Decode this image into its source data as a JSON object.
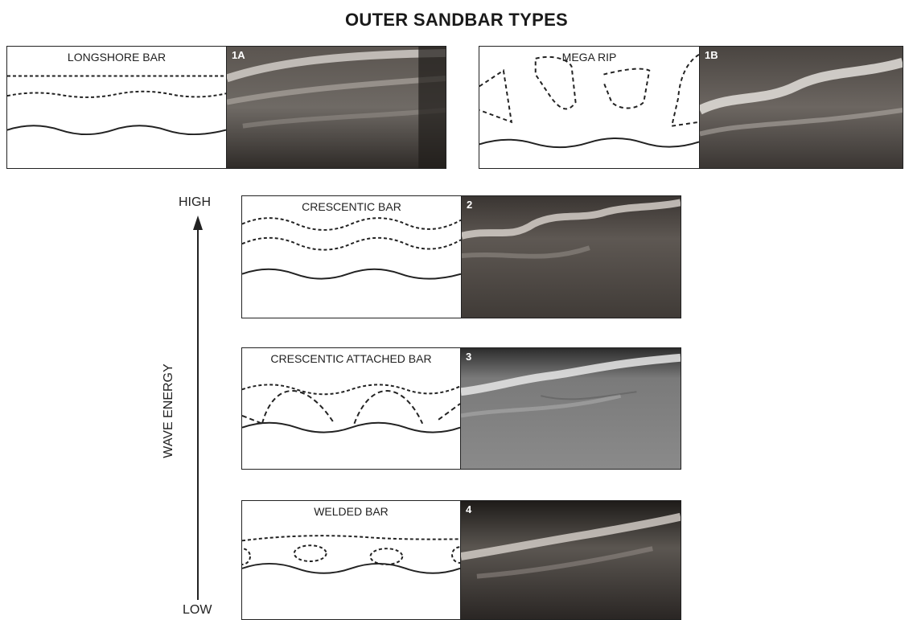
{
  "title": "OUTER SANDBAR TYPES",
  "axis": {
    "high_label": "HIGH",
    "low_label": "LOW",
    "name": "WAVE ENERGY"
  },
  "panels": [
    {
      "id": "1A",
      "label": "LONGSHORE BAR"
    },
    {
      "id": "1B",
      "label": "MEGA RIP"
    },
    {
      "id": "2",
      "label": "CRESCENTIC BAR"
    },
    {
      "id": "3",
      "label": "CRESCENTIC ATTACHED BAR"
    },
    {
      "id": "4",
      "label": "WELDED BAR"
    }
  ],
  "colors": {
    "line": "#222222",
    "photo_dark": "#2b2724",
    "photo_light": "#d9d4cf",
    "photo3_base": "#7d7d7d"
  },
  "icons": {
    "arrow": "arrow-up-icon"
  }
}
